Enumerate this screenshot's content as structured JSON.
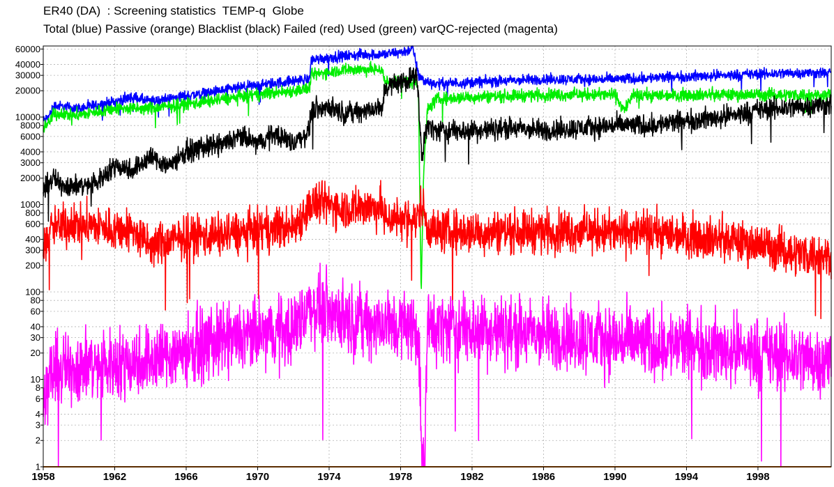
{
  "title": "ER40 (DA)  : Screening statistics  TEMP-q  Globe",
  "subtitle": "Total (blue) Passive (orange) Blacklist (black) Failed (red) Used (green) varQC-rejected (magenta)",
  "chart_data": {
    "type": "line",
    "yscale": "log",
    "xlim": [
      1958,
      2002.1
    ],
    "ylim": [
      1,
      65000
    ],
    "grid": true,
    "xticks": [
      "1958",
      "1962",
      "1966",
      "1970",
      "1974",
      "1978",
      "1982",
      "1986",
      "1990",
      "1994",
      "1998"
    ],
    "yticks": [
      1,
      2,
      3,
      4,
      6,
      8,
      10,
      20,
      30,
      40,
      60,
      80,
      100,
      200,
      300,
      400,
      600,
      800,
      1000,
      2000,
      3000,
      4000,
      6000,
      8000,
      10000,
      20000,
      30000,
      40000,
      60000
    ],
    "yticklabels": [
      "1",
      "2",
      "3",
      "4",
      "6",
      "8",
      "10",
      "20",
      "30",
      "40",
      "60",
      "80",
      "100",
      "200",
      "300",
      "400",
      "600",
      "800",
      "1000",
      "2000",
      "3000",
      "4000",
      "6000",
      "8000",
      "10000",
      "20000",
      "30000",
      "40000",
      "60000"
    ],
    "series": [
      {
        "key": "total",
        "color": "#0000ff",
        "x": [
          1958.0,
          1958.3,
          1958.6,
          1960,
          1962,
          1963,
          1964,
          1966,
          1968,
          1970,
          1972,
          1972.9,
          1973.0,
          1974,
          1975,
          1976,
          1977,
          1978,
          1978.7,
          1979.0,
          1979.3,
          1980,
          1982,
          1984,
          1986,
          1988,
          1990,
          1992,
          1994,
          1996,
          1998,
          2000,
          2002.1
        ],
        "y": [
          9000,
          10000,
          13500,
          12500,
          15000,
          17000,
          15000,
          17500,
          20000,
          23000,
          26000,
          27000,
          45000,
          48000,
          50000,
          52000,
          52000,
          55000,
          60000,
          30000,
          26000,
          24000,
          25000,
          26000,
          27000,
          27000,
          27000,
          28000,
          29000,
          30000,
          31000,
          32000,
          32000
        ]
      },
      {
        "key": "used",
        "color": "#00ee00",
        "x": [
          1958.0,
          1958.3,
          1958.6,
          1960,
          1962,
          1964,
          1966,
          1968,
          1970,
          1972,
          1972.9,
          1973.0,
          1974,
          1975,
          1976,
          1977,
          1977.1,
          1978,
          1978.9,
          1979.0,
          1979.15,
          1979.3,
          1979.5,
          1980,
          1982,
          1984,
          1986,
          1988,
          1990,
          1990.5,
          1991,
          1994,
          1998,
          2002.1
        ],
        "y": [
          7500,
          8500,
          11000,
          10500,
          12500,
          12500,
          14000,
          16000,
          18000,
          20000,
          21000,
          30000,
          33000,
          35000,
          35000,
          35000,
          25000,
          26000,
          25000,
          20000,
          100,
          2500,
          12000,
          16000,
          17000,
          17500,
          18000,
          18000,
          18000,
          12000,
          17500,
          18000,
          18000,
          18000
        ]
      },
      {
        "key": "blacklist",
        "color": "#000000",
        "x": [
          1958.0,
          1958.5,
          1959,
          1960,
          1961,
          1962,
          1963,
          1964,
          1965,
          1966,
          1967,
          1968,
          1969,
          1970,
          1971,
          1972,
          1972.9,
          1973.0,
          1974,
          1975,
          1976,
          1977,
          1977.1,
          1978,
          1978.9,
          1979.0,
          1979.2,
          1979.4,
          1980,
          1982,
          1984,
          1986,
          1988,
          1990,
          1992,
          1994,
          1996,
          1998,
          2000,
          2002.1
        ],
        "y": [
          1400,
          2000,
          1700,
          1600,
          1800,
          2800,
          2500,
          3500,
          2800,
          4000,
          4500,
          4800,
          6000,
          5000,
          6500,
          5000,
          7000,
          12000,
          13000,
          11000,
          12000,
          12500,
          22000,
          25000,
          30000,
          15000,
          3000,
          8000,
          7000,
          7000,
          7500,
          7000,
          7500,
          8000,
          8000,
          9000,
          10000,
          12000,
          13000,
          14000
        ]
      },
      {
        "key": "failed",
        "color": "#ff0000",
        "x": [
          1958.0,
          1958.5,
          1960,
          1962,
          1963,
          1964,
          1966,
          1968,
          1970,
          1972,
          1973,
          1974,
          1975,
          1976,
          1977,
          1977.1,
          1978,
          1978.9,
          1979.2,
          1979.5,
          1980,
          1982,
          1984,
          1986,
          1988,
          1990,
          1992,
          1994,
          1996,
          1998,
          2000,
          2002.1
        ],
        "y": [
          300,
          550,
          600,
          520,
          500,
          330,
          430,
          450,
          500,
          550,
          1000,
          1000,
          900,
          950,
          900,
          700,
          700,
          650,
          1100,
          550,
          500,
          480,
          500,
          500,
          500,
          480,
          480,
          450,
          400,
          350,
          280,
          260
        ]
      },
      {
        "key": "varqc",
        "color": "#ff00ff",
        "x": [
          1958.0,
          1958.5,
          1960,
          1962,
          1964,
          1966,
          1968,
          1970,
          1972,
          1973,
          1974,
          1975,
          1976,
          1977,
          1978,
          1979.0,
          1979.2,
          1979.35,
          1979.5,
          1980,
          1982,
          1984,
          1986,
          1988,
          1990,
          1992,
          1994,
          1996,
          1998,
          2000,
          2002.1
        ],
        "y": [
          6,
          12,
          14,
          15,
          17,
          22,
          27,
          32,
          38,
          70,
          60,
          50,
          45,
          42,
          42,
          40,
          1,
          1,
          40,
          40,
          38,
          35,
          32,
          30,
          28,
          25,
          25,
          22,
          20,
          18,
          16
        ]
      },
      {
        "key": "passive",
        "color": "#b35900",
        "x": [
          1958.0,
          2002.1
        ],
        "y": [
          1,
          1
        ]
      }
    ]
  }
}
